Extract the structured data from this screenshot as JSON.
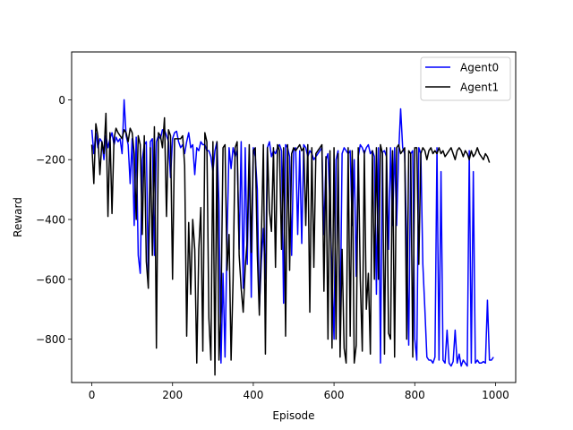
{
  "chart_data": {
    "type": "line",
    "title": "",
    "xlabel": "Episode",
    "ylabel": "Reward",
    "xlim": [
      -50,
      1050
    ],
    "ylim": [
      -945,
      160
    ],
    "x_ticks": [
      0,
      200,
      400,
      600,
      800,
      1000
    ],
    "y_ticks": [
      0,
      -200,
      -400,
      -600,
      -800
    ],
    "x_tick_labels": [
      "0",
      "200",
      "400",
      "600",
      "800",
      "1000"
    ],
    "y_tick_labels": [
      "0",
      "−200",
      "−400",
      "−600",
      "−800"
    ],
    "legend_position": "top-right",
    "x_step": 5,
    "series": [
      {
        "name": "Agent0",
        "color": "#0000ff",
        "x_start": 0,
        "values": [
          -100,
          -180,
          -110,
          -160,
          -130,
          -140,
          -200,
          -120,
          -160,
          -130,
          -110,
          -150,
          -125,
          -140,
          -130,
          -180,
          0,
          -120,
          -150,
          -280,
          -130,
          -420,
          -125,
          -520,
          -580,
          -200,
          -150,
          -140,
          -600,
          -140,
          -130,
          -520,
          -140,
          -120,
          -130,
          -100,
          -100,
          -120,
          -140,
          -260,
          -130,
          -110,
          -105,
          -140,
          -160,
          -150,
          -180,
          -140,
          -110,
          -160,
          -150,
          -250,
          -160,
          -170,
          -140,
          -150,
          -150,
          -170,
          -170,
          -190,
          -240,
          -170,
          -140,
          -350,
          -880,
          -580,
          -860,
          -460,
          -160,
          -230,
          -160,
          -190,
          -170,
          -500,
          -140,
          -630,
          -160,
          -550,
          -180,
          -660,
          -160,
          -190,
          -300,
          -700,
          -540,
          -430,
          -600,
          -160,
          -140,
          -190,
          -170,
          -180,
          -160,
          -150,
          -170,
          -680,
          -150,
          -160,
          -190,
          -520,
          -170,
          -160,
          -450,
          -170,
          -480,
          -150,
          -160,
          -190,
          -170,
          -180,
          -200,
          -190,
          -180,
          -170,
          -160,
          -450,
          -200,
          -180,
          -350,
          -590,
          -800,
          -200,
          -170,
          -790,
          -180,
          -160,
          -170,
          -180,
          -170,
          -420,
          -200,
          -590,
          -190,
          -150,
          -160,
          -180,
          -160,
          -150,
          -180,
          -170,
          -190,
          -650,
          -160,
          -880,
          -175,
          -170,
          -190,
          -500,
          -160,
          -420,
          -160,
          -420,
          -180,
          -30,
          -160,
          -180,
          -480,
          -820,
          -180,
          -170,
          -800,
          -870,
          -160,
          -180,
          -550,
          -700,
          -860,
          -870,
          -870,
          -880,
          -860,
          -160,
          -870,
          -240,
          -870,
          -880,
          -770,
          -880,
          -890,
          -875,
          -770,
          -880,
          -850,
          -890,
          -870,
          -880,
          -890,
          -170,
          -880,
          -240,
          -880,
          -870,
          -880,
          -880,
          -875,
          -880,
          -670,
          -870,
          -870,
          -860
        ]
      },
      {
        "name": "Agent1",
        "color": "#000000",
        "x_start": 0,
        "values": [
          -150,
          -280,
          -80,
          -120,
          -250,
          -140,
          -180,
          -45,
          -390,
          -110,
          -380,
          -130,
          -95,
          -110,
          -120,
          -130,
          -100,
          -110,
          -140,
          -95,
          -110,
          -180,
          -400,
          -120,
          -150,
          -450,
          -120,
          -540,
          -630,
          -160,
          -520,
          -90,
          -830,
          -110,
          -120,
          -160,
          -60,
          -390,
          -100,
          -120,
          -600,
          -130,
          -130,
          -130,
          -130,
          -120,
          -220,
          -790,
          -410,
          -650,
          -400,
          -500,
          -880,
          -500,
          -360,
          -840,
          -110,
          -140,
          -730,
          -870,
          -140,
          -920,
          -140,
          -870,
          -700,
          -160,
          -150,
          -570,
          -450,
          -870,
          -600,
          -160,
          -140,
          -520,
          -630,
          -710,
          -560,
          -470,
          -150,
          -510,
          -170,
          -160,
          -520,
          -720,
          -460,
          -150,
          -850,
          -160,
          -370,
          -440,
          -160,
          -560,
          -150,
          -170,
          -500,
          -160,
          -790,
          -150,
          -570,
          -180,
          -160,
          -170,
          -160,
          -150,
          -170,
          -160,
          -420,
          -150,
          -710,
          -160,
          -560,
          -180,
          -170,
          -160,
          -150,
          -640,
          -190,
          -800,
          -170,
          -830,
          -160,
          -800,
          -180,
          -860,
          -500,
          -830,
          -880,
          -160,
          -790,
          -170,
          -880,
          -820,
          -160,
          -600,
          -840,
          -170,
          -700,
          -580,
          -850,
          -170,
          -600,
          -160,
          -600,
          -150,
          -180,
          -850,
          -160,
          -780,
          -800,
          -170,
          -860,
          -160,
          -150,
          -180,
          -170,
          -160,
          -800,
          -170,
          -180,
          -860,
          -160,
          -160,
          -550,
          -180,
          -160,
          -170,
          -200,
          -170,
          -160,
          -180,
          -170,
          -180,
          -160,
          -180,
          -170,
          -190,
          -180,
          -170,
          -160,
          -180,
          -200,
          -170,
          -160,
          -170,
          -190,
          -170,
          -180,
          -200,
          -170,
          -190,
          -180,
          -160,
          -180,
          -190,
          -200,
          -180,
          -190,
          -210
        ]
      }
    ]
  }
}
